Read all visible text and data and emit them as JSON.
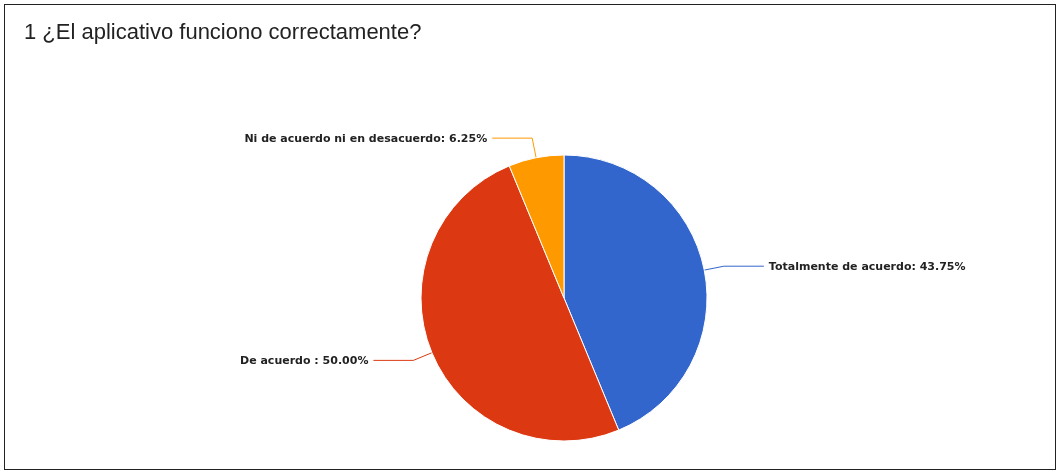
{
  "chart_data": {
    "type": "pie",
    "title": "1 ¿El aplicativo funciono correctamente?",
    "categories": [
      "Totalmente de acuerdo",
      "De acuerdo ",
      "Ni de acuerdo ni en desacuerdo"
    ],
    "values": [
      43.75,
      50,
      6.25
    ],
    "value_labels": [
      "43.75%",
      "50.00%",
      "6.25%"
    ],
    "colors": [
      "#3366cc",
      "#dc3912",
      "#ff9900"
    ],
    "legend": false
  }
}
